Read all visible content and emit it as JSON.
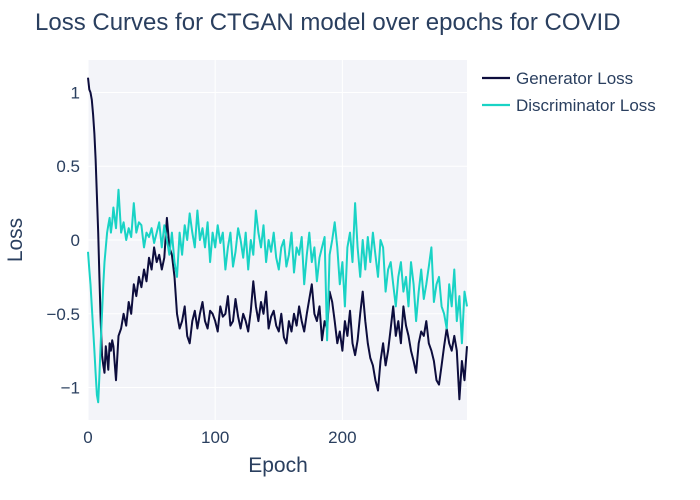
{
  "chart_data": {
    "type": "line",
    "title": "Loss Curves for CTGAN model over epochs for COVID",
    "xlabel": "Epoch",
    "ylabel": "Loss",
    "xlim": [
      0,
      298
    ],
    "ylim": [
      -1.22,
      1.22
    ],
    "xticks": [
      0,
      100,
      200
    ],
    "xtick_labels": [
      "0",
      "100",
      "200"
    ],
    "yticks": [
      1,
      0.5,
      0,
      -0.5,
      -1
    ],
    "ytick_labels": [
      "1",
      "0.5",
      "0",
      "−0.5",
      "−1"
    ],
    "grid": true,
    "legend_position": "top-right",
    "series": [
      {
        "name": "Generator Loss",
        "color": "#0d0d3d",
        "x": [
          0,
          1,
          2,
          3,
          4,
          5,
          6,
          7,
          8,
          9,
          10,
          11,
          12,
          13,
          14,
          15,
          16,
          17,
          18,
          19,
          20,
          22,
          24,
          26,
          28,
          30,
          32,
          34,
          36,
          38,
          40,
          42,
          44,
          46,
          48,
          50,
          52,
          54,
          56,
          58,
          60,
          62,
          64,
          66,
          68,
          70,
          72,
          74,
          76,
          78,
          80,
          82,
          84,
          86,
          88,
          90,
          92,
          94,
          96,
          98,
          100,
          102,
          104,
          106,
          108,
          110,
          112,
          114,
          116,
          118,
          120,
          122,
          124,
          126,
          128,
          130,
          132,
          134,
          136,
          138,
          140,
          142,
          144,
          146,
          148,
          150,
          152,
          154,
          156,
          158,
          160,
          162,
          164,
          166,
          168,
          170,
          172,
          174,
          176,
          178,
          180,
          182,
          184,
          186,
          188,
          190,
          192,
          194,
          196,
          198,
          200,
          202,
          204,
          206,
          208,
          210,
          212,
          214,
          216,
          218,
          220,
          222,
          224,
          226,
          228,
          230,
          232,
          234,
          236,
          238,
          240,
          242,
          244,
          246,
          248,
          250,
          252,
          254,
          256,
          258,
          260,
          262,
          264,
          266,
          268,
          270,
          272,
          274,
          276,
          278,
          280,
          282,
          284,
          286,
          288,
          290,
          292,
          294,
          296,
          298
        ],
        "y": [
          1.1,
          1.02,
          1.0,
          0.95,
          0.85,
          0.72,
          0.55,
          0.3,
          0.05,
          -0.25,
          -0.55,
          -0.78,
          -0.85,
          -0.9,
          -0.72,
          -0.8,
          -0.88,
          -0.7,
          -0.75,
          -0.68,
          -0.72,
          -0.95,
          -0.65,
          -0.6,
          -0.5,
          -0.58,
          -0.42,
          -0.5,
          -0.3,
          -0.38,
          -0.25,
          -0.32,
          -0.2,
          -0.28,
          -0.12,
          -0.2,
          -0.05,
          -0.15,
          -0.1,
          -0.2,
          -0.12,
          0.15,
          -0.05,
          -0.1,
          -0.25,
          -0.5,
          -0.6,
          -0.55,
          -0.45,
          -0.65,
          -0.7,
          -0.55,
          -0.48,
          -0.6,
          -0.5,
          -0.42,
          -0.55,
          -0.6,
          -0.48,
          -0.5,
          -0.55,
          -0.62,
          -0.45,
          -0.52,
          -0.5,
          -0.38,
          -0.58,
          -0.55,
          -0.4,
          -0.52,
          -0.6,
          -0.5,
          -0.55,
          -0.62,
          -0.48,
          -0.28,
          -0.45,
          -0.55,
          -0.42,
          -0.5,
          -0.35,
          -0.6,
          -0.52,
          -0.48,
          -0.58,
          -0.62,
          -0.5,
          -0.66,
          -0.7,
          -0.55,
          -0.62,
          -0.5,
          -0.58,
          -0.45,
          -0.55,
          -0.62,
          -0.5,
          -0.4,
          -0.3,
          -0.5,
          -0.55,
          -0.45,
          -0.68,
          -0.55,
          -0.6,
          -0.35,
          -0.42,
          -0.55,
          -0.7,
          -0.62,
          -0.75,
          -0.55,
          -0.65,
          -0.48,
          -0.7,
          -0.78,
          -0.68,
          -0.5,
          -0.35,
          -0.55,
          -0.7,
          -0.8,
          -0.85,
          -0.95,
          -1.02,
          -0.82,
          -0.7,
          -0.85,
          -0.75,
          -0.6,
          -0.45,
          -0.65,
          -0.55,
          -0.7,
          -0.45,
          -0.58,
          -0.65,
          -0.75,
          -0.82,
          -0.9,
          -0.7,
          -0.62,
          -0.65,
          -0.55,
          -0.7,
          -0.75,
          -0.82,
          -0.95,
          -0.98,
          -0.85,
          -0.72,
          -0.6,
          -0.7,
          -0.75,
          -0.65,
          -0.75,
          -1.08,
          -0.82,
          -0.95,
          -0.72
        ]
      },
      {
        "name": "Discriminator Loss",
        "color": "#19d3c5",
        "x": [
          0,
          1,
          2,
          3,
          4,
          5,
          6,
          7,
          8,
          9,
          10,
          11,
          12,
          13,
          14,
          15,
          16,
          17,
          18,
          19,
          20,
          22,
          24,
          26,
          28,
          30,
          32,
          34,
          36,
          38,
          40,
          42,
          44,
          46,
          48,
          50,
          52,
          54,
          56,
          58,
          60,
          62,
          64,
          66,
          68,
          70,
          72,
          74,
          76,
          78,
          80,
          82,
          84,
          86,
          88,
          90,
          92,
          94,
          96,
          98,
          100,
          102,
          104,
          106,
          108,
          110,
          112,
          114,
          116,
          118,
          120,
          122,
          124,
          126,
          128,
          130,
          132,
          134,
          136,
          138,
          140,
          142,
          144,
          146,
          148,
          150,
          152,
          154,
          156,
          158,
          160,
          162,
          164,
          166,
          168,
          170,
          172,
          174,
          176,
          178,
          180,
          182,
          184,
          186,
          188,
          190,
          192,
          194,
          196,
          198,
          200,
          202,
          204,
          206,
          208,
          210,
          212,
          214,
          216,
          218,
          220,
          222,
          224,
          226,
          228,
          230,
          232,
          234,
          236,
          238,
          240,
          242,
          244,
          246,
          248,
          250,
          252,
          254,
          256,
          258,
          260,
          262,
          264,
          266,
          268,
          270,
          272,
          274,
          276,
          278,
          280,
          282,
          284,
          286,
          288,
          290,
          292,
          294,
          296,
          298
        ],
        "y": [
          -0.08,
          -0.2,
          -0.3,
          -0.45,
          -0.6,
          -0.75,
          -0.9,
          -1.05,
          -1.1,
          -0.92,
          -0.7,
          -0.5,
          -0.3,
          -0.15,
          -0.05,
          0.05,
          0.1,
          0.15,
          0.05,
          0.12,
          0.22,
          0.08,
          0.34,
          0.05,
          0.12,
          0.0,
          0.08,
          0.02,
          0.25,
          0.05,
          0.12,
          0.1,
          -0.05,
          0.05,
          0.02,
          0.08,
          -0.02,
          0.05,
          0.12,
          -0.05,
          0.1,
          0.0,
          -0.1,
          0.05,
          -0.15,
          -0.25,
          0.05,
          -0.1,
          0.1,
          0.0,
          0.18,
          0.05,
          -0.05,
          0.2,
          0.0,
          0.08,
          -0.05,
          0.12,
          -0.15,
          0.05,
          -0.05,
          0.1,
          -0.02,
          0.05,
          -0.2,
          -0.05,
          0.05,
          -0.18,
          -0.08,
          0.08,
          0.0,
          -0.12,
          0.05,
          -0.2,
          0.0,
          -0.1,
          0.2,
          0.05,
          -0.05,
          0.1,
          -0.15,
          0.0,
          -0.08,
          0.05,
          -0.12,
          -0.2,
          -0.05,
          0.0,
          -0.18,
          -0.1,
          0.05,
          -0.22,
          -0.05,
          -0.1,
          0.02,
          -0.3,
          -0.1,
          0.05,
          -0.15,
          -0.05,
          -0.28,
          -0.12,
          -0.05,
          0.02,
          -0.68,
          -0.1,
          0.0,
          0.12,
          -0.05,
          -0.3,
          -0.15,
          -0.45,
          -0.05,
          0.05,
          -0.15,
          0.25,
          -0.05,
          -0.25,
          0.0,
          -0.2,
          0.02,
          -0.15,
          0.05,
          -0.1,
          -0.25,
          0.0,
          -0.05,
          -0.35,
          -0.2,
          -0.15,
          -0.3,
          -0.45,
          -0.25,
          -0.15,
          -0.35,
          -0.25,
          -0.45,
          -0.15,
          -0.3,
          -0.55,
          -0.35,
          -0.2,
          -0.4,
          -0.3,
          -0.18,
          -0.05,
          -0.42,
          -0.3,
          -0.25,
          -0.45,
          -0.5,
          -0.6,
          -0.3,
          -0.45,
          -0.2,
          -0.55,
          -0.38,
          -0.7,
          -0.35,
          -0.45
        ]
      }
    ]
  }
}
